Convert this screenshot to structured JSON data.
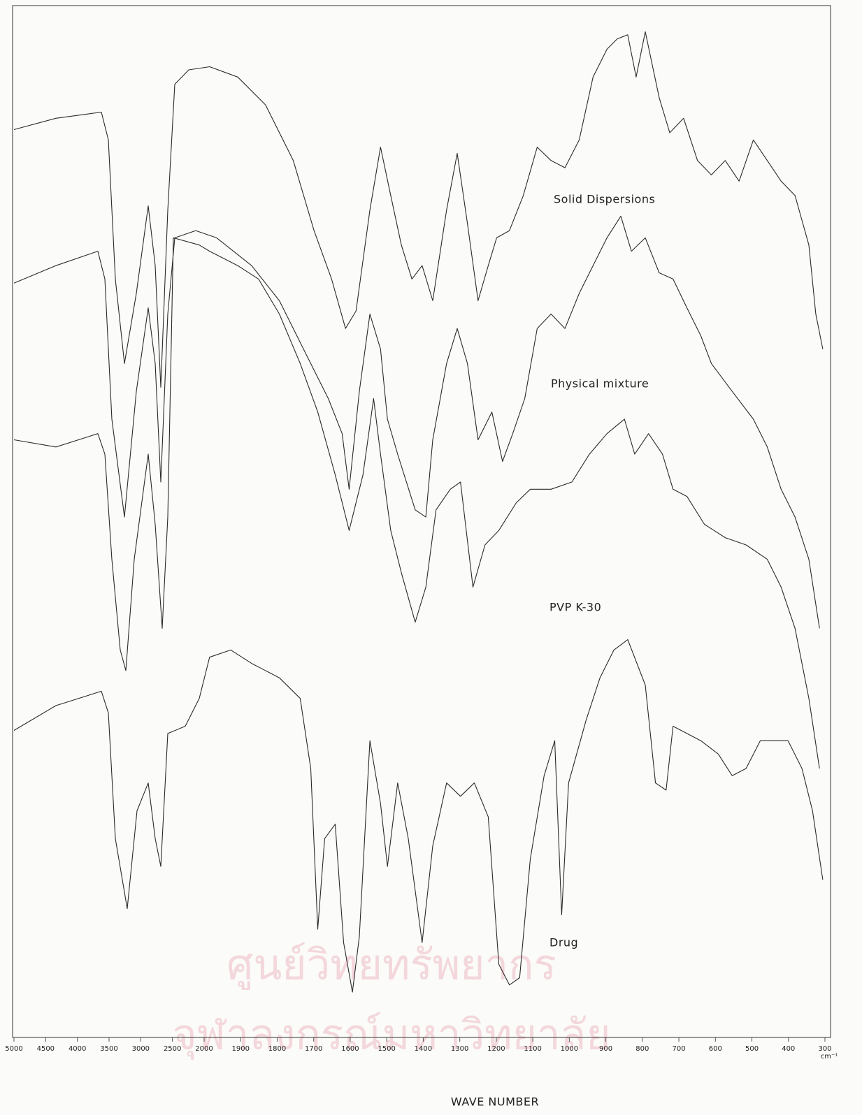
{
  "chart_data": {
    "type": "line",
    "xlabel": "WAVE  NUMBER",
    "x_unit": "cm⁻¹",
    "watermark": [
      "ศูนย์วิทยทรัพยากร",
      "จุฬาลงกรณ์มหาวิทยาลัย"
    ],
    "xlim": [
      5000,
      300
    ],
    "x_scale_break": 2000,
    "xticks": [
      5000,
      4500,
      4000,
      3500,
      3000,
      2500,
      2000,
      1900,
      1800,
      1700,
      1600,
      1500,
      1400,
      1300,
      1200,
      1100,
      1000,
      900,
      800,
      700,
      600,
      500,
      400,
      300
    ],
    "ylim": [
      0,
      100
    ],
    "series": [
      {
        "name": "Solid Dispersions",
        "color": "#2a2a2a",
        "x": [
          5000,
          4338,
          3621,
          3511,
          3401,
          3257,
          3070,
          2882,
          2772,
          2684,
          2573,
          2463,
          2243,
          1985,
          1908,
          1832,
          1756,
          1699,
          1651,
          1613,
          1584,
          1546,
          1517,
          1489,
          1460,
          1431,
          1403,
          1374,
          1336,
          1307,
          1279,
          1250,
          1222,
          1199,
          1164,
          1126,
          1088,
          1050,
          1012,
          973,
          935,
          897,
          869,
          840,
          817,
          792,
          754,
          725,
          687,
          649,
          611,
          573,
          535,
          496,
          458,
          420,
          382,
          344,
          325,
          306
        ],
        "values": [
          88.1,
          89.2,
          89.8,
          87.1,
          73.6,
          65.4,
          72.2,
          80.7,
          74.9,
          63.1,
          80.3,
          92.5,
          93.9,
          94.2,
          93.2,
          90.5,
          85.1,
          78.3,
          73.6,
          68.8,
          70.5,
          80.3,
          86.4,
          81.7,
          76.9,
          73.6,
          74.9,
          71.5,
          80.3,
          85.8,
          79.0,
          71.5,
          74.9,
          77.6,
          78.3,
          81.7,
          86.4,
          85.1,
          84.4,
          87.1,
          93.2,
          95.9,
          96.9,
          97.3,
          93.2,
          97.6,
          91.2,
          87.8,
          89.2,
          85.1,
          83.7,
          85.1,
          83.1,
          87.1,
          85.1,
          83.1,
          81.7,
          76.9,
          70.2,
          66.8
        ]
      },
      {
        "name": "Physical mixture",
        "color": "#2a2a2a",
        "x": [
          5000,
          4338,
          3676,
          3566,
          3456,
          3257,
          3070,
          2882,
          2772,
          2684,
          2573,
          2463,
          2132,
          1966,
          1870,
          1794,
          1718,
          1660,
          1622,
          1603,
          1575,
          1546,
          1517,
          1498,
          1470,
          1422,
          1393,
          1374,
          1336,
          1307,
          1279,
          1250,
          1212,
          1183,
          1155,
          1122,
          1088,
          1050,
          1012,
          973,
          935,
          897,
          859,
          830,
          792,
          754,
          716,
          678,
          640,
          611,
          554,
          496,
          458,
          420,
          382,
          344,
          315
        ],
        "values": [
          73.2,
          74.9,
          76.3,
          73.6,
          60.0,
          50.5,
          62.7,
          70.8,
          65.4,
          53.9,
          70.2,
          77.6,
          78.3,
          77.6,
          74.9,
          71.5,
          66.1,
          62.0,
          58.6,
          53.2,
          62.7,
          70.2,
          66.8,
          60.0,
          56.6,
          51.2,
          50.5,
          58.0,
          65.4,
          68.8,
          65.4,
          58.0,
          60.7,
          55.9,
          58.6,
          62.0,
          68.8,
          70.2,
          68.8,
          72.2,
          74.9,
          77.6,
          79.7,
          76.3,
          77.6,
          74.2,
          73.6,
          70.8,
          68.1,
          65.4,
          62.7,
          60.0,
          57.3,
          53.2,
          50.5,
          46.4,
          39.7
        ]
      },
      {
        "name": "PVP  K-30",
        "color": "#2a2a2a",
        "x": [
          5000,
          4338,
          3676,
          3566,
          3456,
          3323,
          3235,
          3103,
          2882,
          2772,
          2662,
          2573,
          2485,
          2077,
          1985,
          1908,
          1851,
          1794,
          1737,
          1689,
          1641,
          1603,
          1565,
          1536,
          1517,
          1489,
          1460,
          1422,
          1393,
          1365,
          1326,
          1298,
          1264,
          1231,
          1193,
          1145,
          1107,
          1050,
          993,
          945,
          897,
          849,
          821,
          783,
          745,
          716,
          678,
          630,
          573,
          516,
          458,
          420,
          382,
          344,
          315
        ],
        "values": [
          58.0,
          57.3,
          58.6,
          56.6,
          46.4,
          37.6,
          35.6,
          46.4,
          56.6,
          49.8,
          39.7,
          50.5,
          77.6,
          76.9,
          76.3,
          74.9,
          73.6,
          70.2,
          65.4,
          60.7,
          54.6,
          49.2,
          54.6,
          62.0,
          56.6,
          49.2,
          45.1,
          40.3,
          43.7,
          51.2,
          53.2,
          53.9,
          43.7,
          47.8,
          49.2,
          51.9,
          53.2,
          53.2,
          53.9,
          56.6,
          58.6,
          60.0,
          56.6,
          58.6,
          56.6,
          53.2,
          52.5,
          49.8,
          48.5,
          47.8,
          46.4,
          43.7,
          39.7,
          32.9,
          26.1
        ]
      },
      {
        "name": "Drug",
        "color": "#2a2a2a",
        "x": [
          5000,
          4338,
          3621,
          3511,
          3401,
          3213,
          3059,
          2882,
          2772,
          2684,
          2573,
          2298,
          2077,
          1985,
          1927,
          1870,
          1794,
          1737,
          1708,
          1689,
          1670,
          1641,
          1618,
          1594,
          1575,
          1546,
          1517,
          1498,
          1470,
          1441,
          1403,
          1374,
          1336,
          1298,
          1260,
          1222,
          1193,
          1164,
          1136,
          1107,
          1069,
          1040,
          1021,
          1002,
          954,
          916,
          878,
          840,
          792,
          764,
          735,
          716,
          678,
          640,
          592,
          554,
          516,
          477,
          439,
          401,
          363,
          334,
          306
        ],
        "values": [
          29.8,
          32.2,
          33.6,
          31.5,
          19.3,
          12.5,
          22.0,
          24.7,
          19.3,
          16.6,
          29.5,
          30.2,
          32.9,
          36.9,
          37.6,
          36.3,
          34.9,
          32.9,
          26.1,
          10.5,
          19.3,
          20.7,
          9.2,
          4.4,
          9.8,
          28.8,
          22.7,
          16.6,
          24.7,
          19.3,
          9.2,
          18.6,
          24.7,
          23.4,
          24.7,
          21.4,
          7.1,
          5.1,
          5.8,
          17.3,
          25.4,
          28.8,
          11.9,
          24.7,
          30.8,
          34.9,
          37.6,
          38.6,
          34.2,
          24.7,
          24.0,
          30.2,
          29.5,
          28.8,
          27.5,
          25.4,
          26.1,
          28.8,
          28.8,
          28.8,
          26.1,
          22.0,
          15.3
        ]
      }
    ]
  }
}
